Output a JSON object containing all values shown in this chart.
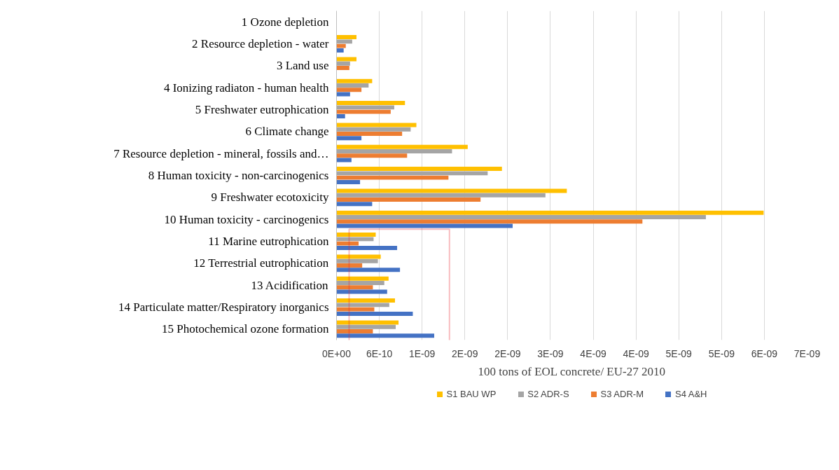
{
  "chart_data": {
    "type": "bar",
    "orientation": "horizontal",
    "xlabel": "100 tons of EOL concrete/ EU-27 2010",
    "categories": [
      "1 Ozone depletion",
      "2 Resource depletion - water",
      "3 Land use",
      "4 Ionizing radiaton - human health",
      "5 Freshwater eutrophication",
      "6 Climate change",
      "7 Resource depletion - mineral, fossils and…",
      "8 Human toxicity - non-carcinogenics",
      "9 Freshwater ecotoxicity",
      "10 Human toxicity - carcinogenics",
      "11 Marine eutrophication",
      "12 Terrestrial eutrophication",
      "13 Acidification",
      "14 Particulate matter/Respiratory inorganics",
      "15 Photochemical ozone formation"
    ],
    "series": [
      {
        "name": "S1 BAU WP",
        "color": "#ffc000",
        "values": [
          0,
          2.8e-10,
          2.8e-10,
          5e-10,
          9.6e-10,
          1.12e-09,
          1.84e-09,
          2.32e-09,
          3.23e-09,
          5.99e-09,
          5.5e-10,
          6.2e-10,
          7.3e-10,
          8.2e-10,
          8.7e-10
        ]
      },
      {
        "name": "S2 ADR-S",
        "color": "#a5a5a5",
        "values": [
          0,
          2.2e-10,
          1.9e-10,
          4.5e-10,
          8.1e-10,
          1.04e-09,
          1.62e-09,
          2.12e-09,
          2.93e-09,
          5.18e-09,
          5.2e-10,
          5.8e-10,
          6.7e-10,
          7.4e-10,
          8.3e-10
        ]
      },
      {
        "name": "S3 ADR-M",
        "color": "#ed7d31",
        "values": [
          0,
          1.3e-10,
          1.8e-10,
          3.5e-10,
          7.6e-10,
          9.2e-10,
          9.9e-10,
          1.57e-09,
          2.02e-09,
          4.29e-09,
          3.1e-10,
          3.6e-10,
          5.1e-10,
          5.3e-10,
          5.1e-10
        ]
      },
      {
        "name": "S4 A&H",
        "color": "#4472c4",
        "values": [
          0,
          1e-10,
          0,
          1.9e-10,
          1.2e-10,
          3.5e-10,
          2.1e-10,
          3.3e-10,
          5e-10,
          2.47e-09,
          8.5e-10,
          8.9e-10,
          7.1e-10,
          1.07e-09,
          1.37e-09
        ]
      }
    ],
    "xlim": [
      0,
      6.6e-09
    ],
    "xticks": [
      {
        "value": 0,
        "label": "0E+00"
      },
      {
        "value": 6e-10,
        "label": "6E-10"
      },
      {
        "value": 1.2e-09,
        "label": "1E-09"
      },
      {
        "value": 1.8e-09,
        "label": "2E-09"
      },
      {
        "value": 2.4e-09,
        "label": "2E-09"
      },
      {
        "value": 3e-09,
        "label": "3E-09"
      },
      {
        "value": 3.6e-09,
        "label": "4E-09"
      },
      {
        "value": 4.2e-09,
        "label": "4E-09"
      },
      {
        "value": 4.8e-09,
        "label": "5E-09"
      },
      {
        "value": 5.4e-09,
        "label": "5E-09"
      },
      {
        "value": 6e-09,
        "label": "6E-09"
      },
      {
        "value": 6.6e-09,
        "label": "7E-09"
      }
    ],
    "grid": "x",
    "legend": "bottom"
  }
}
